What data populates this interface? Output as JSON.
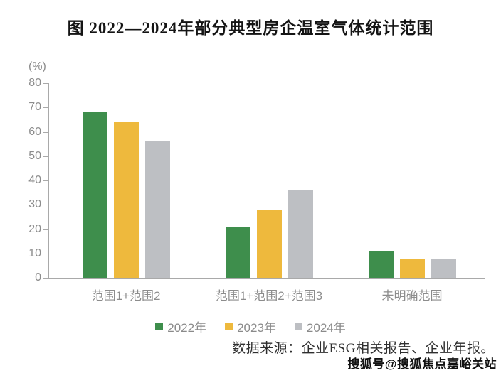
{
  "title": "图  2022—2024年部分典型房企温室气体统计范围",
  "chart_data": {
    "type": "bar",
    "title": "图 2022—2024年部分典型房企温室气体统计范围",
    "unit_label": "(%)",
    "xlabel": "",
    "ylabel": "(%)",
    "ylim": [
      0,
      80
    ],
    "ytick_step": 10,
    "ytick_labels": [
      "0",
      "10",
      "20",
      "30",
      "40",
      "50",
      "60",
      "70",
      "80"
    ],
    "grid": false,
    "legend_position": "bottom",
    "categories": [
      "范围1+范围2",
      "范围1+范围2+范围3",
      "未明确范围"
    ],
    "series": [
      {
        "name": "2022年",
        "color": "#3e8e4c",
        "values": [
          68,
          21,
          11
        ]
      },
      {
        "name": "2023年",
        "color": "#eeb93d",
        "values": [
          64,
          28,
          8
        ]
      },
      {
        "name": "2024年",
        "color": "#bdbfc3",
        "values": [
          56,
          36,
          8
        ]
      }
    ]
  },
  "source_note": "数据来源：企业ESG相关报告、企业年报。",
  "watermark": "搜狐号@搜狐焦点嘉峪关站",
  "colors": {
    "axis": "#a9a9a9",
    "tick_text": "#8c8c8c",
    "title_text": "#141414",
    "legend_text": "#8a8a8a",
    "source_text": "#2e2e2e",
    "background": "#ffffff"
  }
}
